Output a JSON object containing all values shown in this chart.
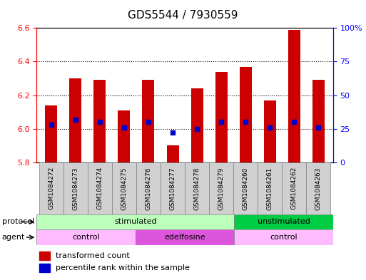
{
  "title": "GDS5544 / 7930559",
  "samples": [
    "GSM1084272",
    "GSM1084273",
    "GSM1084274",
    "GSM1084275",
    "GSM1084276",
    "GSM1084277",
    "GSM1084278",
    "GSM1084279",
    "GSM1084260",
    "GSM1084261",
    "GSM1084262",
    "GSM1084263"
  ],
  "transformed_counts": [
    6.14,
    6.3,
    6.29,
    6.11,
    6.29,
    5.9,
    6.24,
    6.34,
    6.37,
    6.17,
    6.59,
    6.29
  ],
  "percentile_ranks": [
    28,
    32,
    30,
    26,
    30,
    22,
    25,
    30,
    30,
    26,
    30,
    26
  ],
  "bar_bottom": 5.8,
  "ylim_left": [
    5.8,
    6.6
  ],
  "ylim_right": [
    0,
    100
  ],
  "yticks_left": [
    5.8,
    6.0,
    6.2,
    6.4,
    6.6
  ],
  "yticks_right": [
    0,
    25,
    50,
    75,
    100
  ],
  "ytick_labels_right": [
    "0",
    "25",
    "50",
    "75",
    "100%"
  ],
  "bar_color": "#cc0000",
  "dot_color": "#0000cc",
  "protocol_stim_color": "#bbffbb",
  "protocol_unstim_color": "#00cc44",
  "agent_ctrl_color": "#ffbbff",
  "agent_edel_color": "#dd55dd",
  "figsize": [
    5.13,
    3.93
  ],
  "dpi": 100
}
